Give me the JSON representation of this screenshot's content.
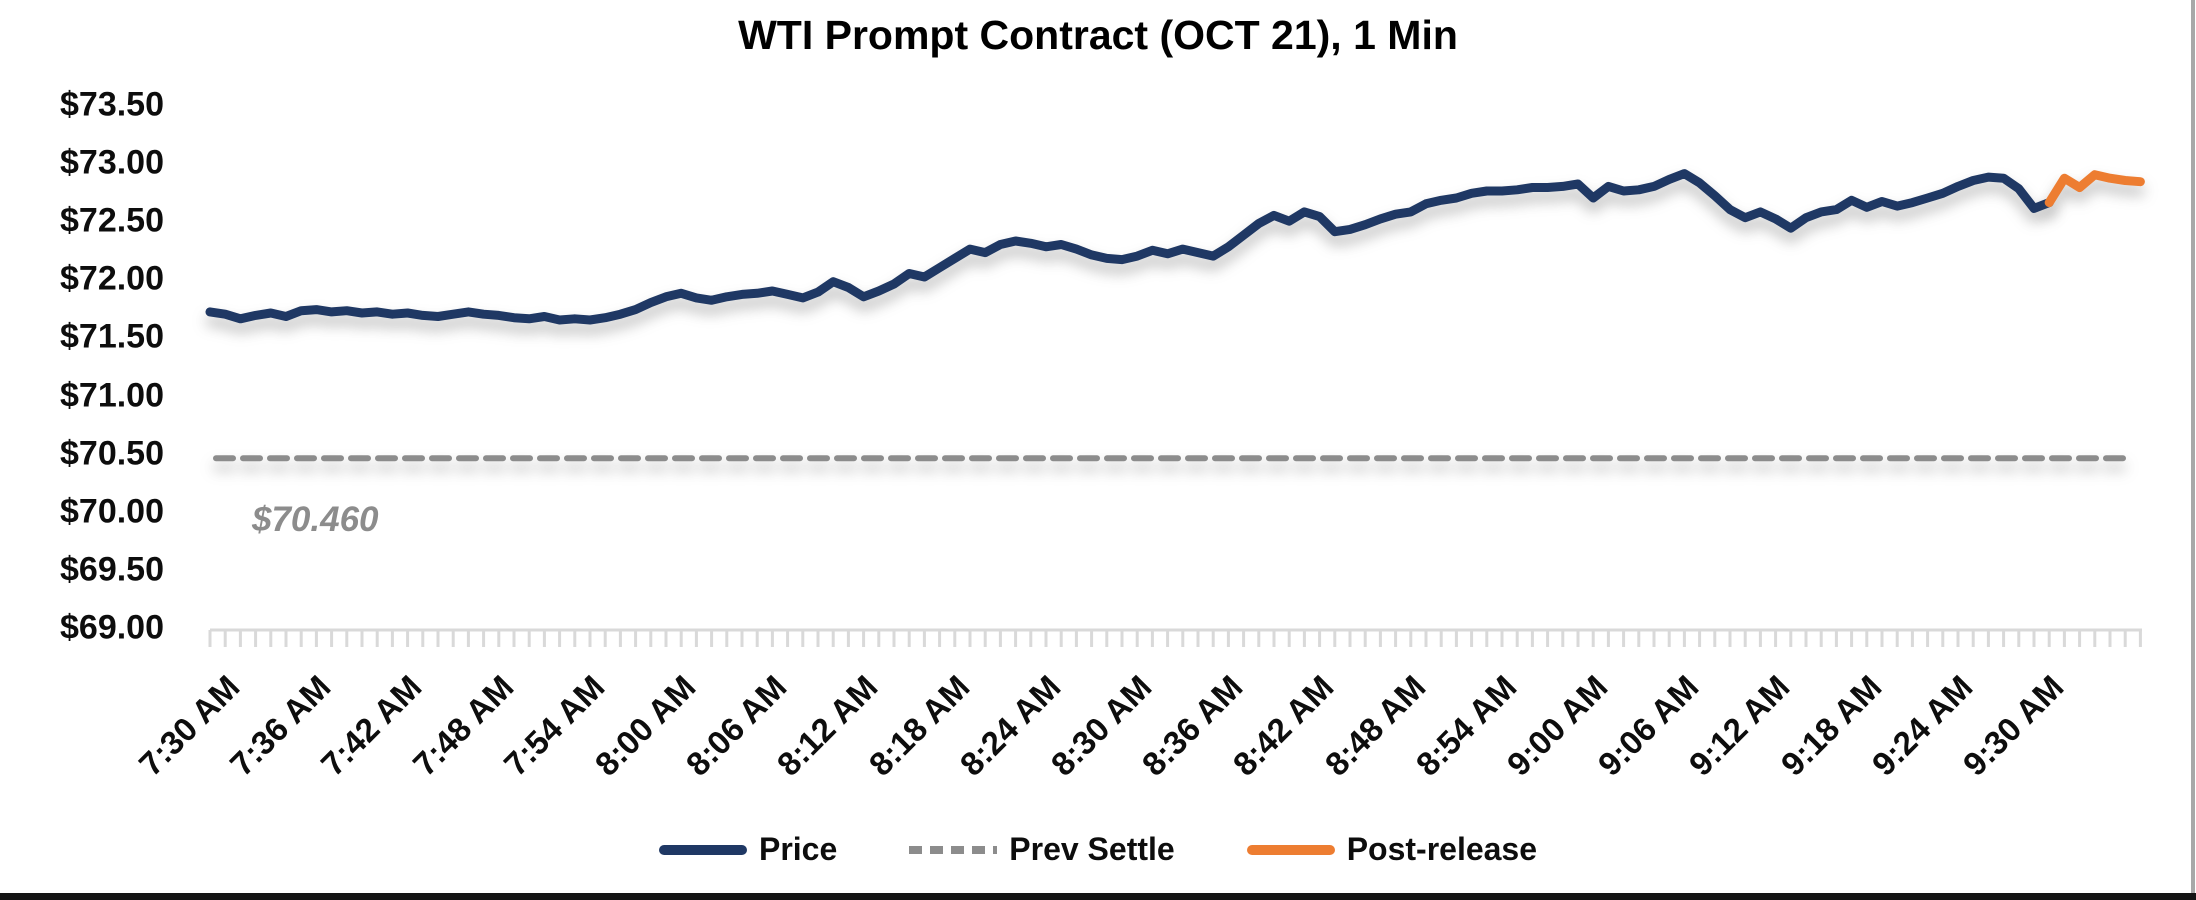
{
  "chart_data": {
    "type": "line",
    "title": "WTI Prompt Contract (OCT 21), 1 Min",
    "xlabel": "",
    "ylabel": "",
    "ylim": [
      69.0,
      73.5
    ],
    "y_tick_labels": [
      "$73.50",
      "$73.00",
      "$72.50",
      "$72.00",
      "$71.50",
      "$71.00",
      "$70.50",
      "$70.00",
      "$69.50",
      "$69.00"
    ],
    "x_tick_labels": [
      "7:30 AM",
      "7:36 AM",
      "7:42 AM",
      "7:48 AM",
      "7:54 AM",
      "8:00 AM",
      "8:06 AM",
      "8:12 AM",
      "8:18 AM",
      "8:24 AM",
      "8:30 AM",
      "8:36 AM",
      "8:42 AM",
      "8:48 AM",
      "8:54 AM",
      "9:00 AM",
      "9:06 AM",
      "9:12 AM",
      "9:18 AM",
      "9:24 AM",
      "9:30 AM"
    ],
    "x_tick_interval_minutes": 6,
    "minor_tick_interval_minutes": 1,
    "x_total_minutes": 127,
    "grid": "off",
    "legend_position": "bottom",
    "prev_settle": {
      "value": 70.46,
      "label": "$70.460"
    },
    "series": [
      {
        "name": "Price",
        "color": "#1F3864",
        "style": "solid",
        "start_minute": 0,
        "values": [
          71.72,
          71.7,
          71.66,
          71.69,
          71.71,
          71.68,
          71.73,
          71.74,
          71.72,
          71.73,
          71.71,
          71.72,
          71.7,
          71.71,
          71.69,
          71.68,
          71.7,
          71.72,
          71.7,
          71.69,
          71.67,
          71.66,
          71.68,
          71.65,
          71.66,
          71.65,
          71.67,
          71.7,
          71.74,
          71.8,
          71.85,
          71.88,
          71.84,
          71.82,
          71.85,
          71.87,
          71.88,
          71.9,
          71.87,
          71.84,
          71.89,
          71.98,
          71.93,
          71.85,
          71.9,
          71.96,
          72.05,
          72.02,
          72.1,
          72.18,
          72.26,
          72.23,
          72.3,
          72.33,
          72.31,
          72.28,
          72.3,
          72.26,
          72.21,
          72.18,
          72.17,
          72.2,
          72.25,
          72.22,
          72.26,
          72.23,
          72.2,
          72.28,
          72.38,
          72.48,
          72.55,
          72.5,
          72.58,
          72.54,
          72.41,
          72.43,
          72.47,
          72.52,
          72.56,
          72.58,
          72.65,
          72.68,
          72.7,
          72.74,
          72.76,
          72.76,
          72.77,
          72.79,
          72.79,
          72.8,
          72.82,
          72.7,
          72.8,
          72.76,
          72.77,
          72.8,
          72.86,
          72.91,
          72.83,
          72.72,
          72.6,
          72.53,
          72.58,
          72.52,
          72.44,
          72.53,
          72.58,
          72.6,
          72.68,
          72.62,
          72.67,
          72.63,
          72.66,
          72.7,
          72.74,
          72.8,
          72.85,
          72.88,
          72.87,
          72.78,
          72.61,
          72.66
        ]
      },
      {
        "name": "Prev Settle",
        "color": "#8C8C8C",
        "style": "dashed",
        "value": 70.46
      },
      {
        "name": "Post-release",
        "color": "#ED7D31",
        "style": "solid",
        "start_minute": 121,
        "values": [
          72.66,
          72.87,
          72.79,
          72.9,
          72.87,
          72.85,
          72.84
        ]
      }
    ],
    "legend": [
      "Price",
      "Prev Settle",
      "Post-release"
    ]
  },
  "colors": {
    "price": "#1F3864",
    "prev_settle": "#8C8C8C",
    "post_release": "#ED7D31",
    "axis": "#D9D9D9",
    "annotation": "#8C8C8C"
  }
}
